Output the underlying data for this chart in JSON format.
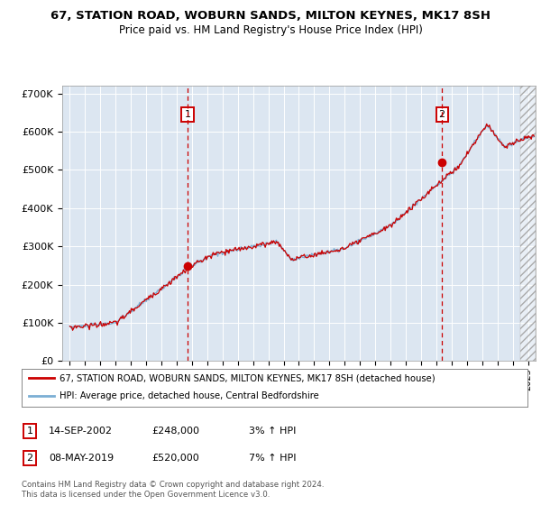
{
  "title": "67, STATION ROAD, WOBURN SANDS, MILTON KEYNES, MK17 8SH",
  "subtitle": "Price paid vs. HM Land Registry's House Price Index (HPI)",
  "plot_bg_color": "#dce6f1",
  "line1_color": "#cc0000",
  "line2_color": "#7bafd4",
  "ylim": [
    0,
    720000
  ],
  "yticks": [
    0,
    100000,
    200000,
    300000,
    400000,
    500000,
    600000,
    700000
  ],
  "ytick_labels": [
    "£0",
    "£100K",
    "£200K",
    "£300K",
    "£400K",
    "£500K",
    "£600K",
    "£700K"
  ],
  "sale1_date": 2002.71,
  "sale1_price": 248000,
  "sale1_label": "1",
  "sale2_date": 2019.37,
  "sale2_price": 520000,
  "sale2_label": "2",
  "legend_line1": "67, STATION ROAD, WOBURN SANDS, MILTON KEYNES, MK17 8SH (detached house)",
  "legend_line2": "HPI: Average price, detached house, Central Bedfordshire",
  "annotation1_date": "14-SEP-2002",
  "annotation1_price": "£248,000",
  "annotation1_hpi": "3% ↑ HPI",
  "annotation2_date": "08-MAY-2019",
  "annotation2_price": "£520,000",
  "annotation2_hpi": "7% ↑ HPI",
  "footer": "Contains HM Land Registry data © Crown copyright and database right 2024.\nThis data is licensed under the Open Government Licence v3.0.",
  "xmin": 1994.5,
  "xmax": 2025.5,
  "hatch_start": 2024.5
}
